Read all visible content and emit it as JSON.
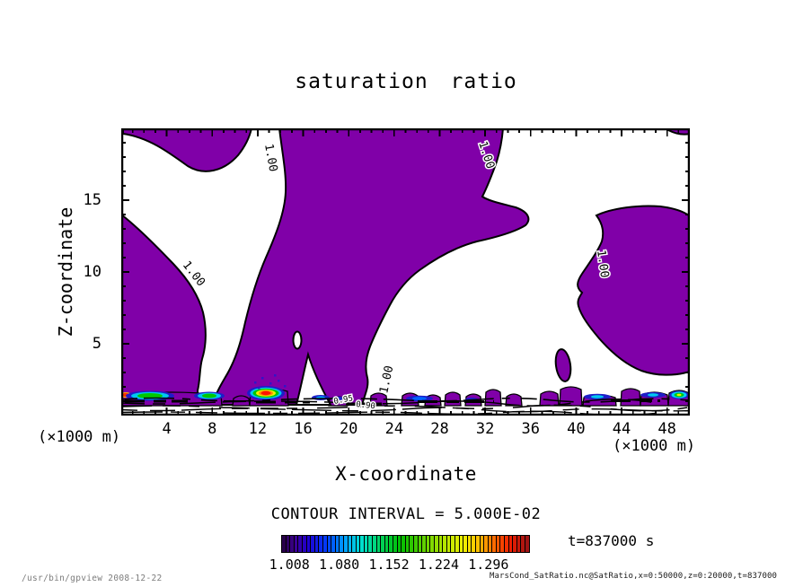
{
  "title": "saturation ratio",
  "axes": {
    "x": {
      "label": "X-coordinate",
      "unit": "(×1000 m)",
      "min": 0,
      "max": 50,
      "ticks": [
        4,
        8,
        12,
        16,
        20,
        24,
        28,
        32,
        36,
        40,
        44,
        48
      ]
    },
    "z": {
      "label": "Z-coordinate",
      "unit": "(×1000 m)",
      "min": 0,
      "max": 20,
      "ticks": [
        5,
        10,
        15
      ]
    }
  },
  "contour": {
    "interval_text": "CONTOUR INTERVAL = 5.000E-02",
    "main_label": "1.00",
    "minor_label_a": "0.95",
    "minor_label_b": "0.90"
  },
  "colorbar": {
    "min": 0.996,
    "max": 1.356,
    "cells": 60,
    "tick_labels": [
      "1.008",
      "1.080",
      "1.152",
      "1.224",
      "1.296"
    ],
    "tick_values": [
      1.008,
      1.08,
      1.152,
      1.224,
      1.296
    ],
    "stops": [
      [
        0.0,
        "#28004a"
      ],
      [
        0.05,
        "#3c0096"
      ],
      [
        0.1,
        "#1e00d2"
      ],
      [
        0.18,
        "#0040ff"
      ],
      [
        0.25,
        "#00a0ff"
      ],
      [
        0.32,
        "#00e0d0"
      ],
      [
        0.4,
        "#00d25a"
      ],
      [
        0.48,
        "#00be00"
      ],
      [
        0.58,
        "#64d200"
      ],
      [
        0.66,
        "#b4e600"
      ],
      [
        0.74,
        "#f0f000"
      ],
      [
        0.8,
        "#ffbe00"
      ],
      [
        0.87,
        "#ff6400"
      ],
      [
        0.93,
        "#f01e00"
      ],
      [
        1.0,
        "#a01414"
      ]
    ]
  },
  "time_label": "t=837000 s",
  "footer": {
    "left": "/usr/bin/gpview  2008-12-22",
    "right": "MarsCond_SatRatio.nc@SatRatio,x=0:50000,z=0:20000,t=837000"
  },
  "fill_color": "#8000a8",
  "chart_data": {
    "type": "contour",
    "title": "saturation ratio",
    "xlabel": "X-coordinate (×1000 m)",
    "ylabel": "Z-coordinate (×1000 m)",
    "xlim": [
      0,
      50
    ],
    "ylim": [
      0,
      20
    ],
    "x_ticks": [
      4,
      8,
      12,
      16,
      20,
      24,
      28,
      32,
      36,
      40,
      44,
      48
    ],
    "y_ticks": [
      5,
      10,
      15
    ],
    "contour_interval": 0.05,
    "labeled_contour_level": 1.0,
    "fill_threshold": 1.0,
    "fill_color": "#8000a8",
    "time_seconds": 837000,
    "colorbar_range": [
      0.996,
      1.356
    ],
    "colorbar_cell_width": 0.006,
    "colorbar_tick_values": [
      1.008,
      1.08,
      1.152,
      1.224,
      1.296
    ],
    "saturated_regions": [
      {
        "desc": "top-left lobe along upper boundary",
        "x_km": [
          0.2,
          11.5
        ],
        "z_km": [
          16.8,
          20
        ]
      },
      {
        "desc": "left wedge along left boundary",
        "x_km": [
          0,
          7.5
        ],
        "z_km": [
          0.3,
          14
        ]
      },
      {
        "desc": "central plume from surface to top",
        "x_km": [
          8,
          36
        ],
        "z_km": [
          0.8,
          20
        ]
      },
      {
        "desc": "right lobe touching right boundary",
        "x_km": [
          40,
          50
        ],
        "z_km": [
          2.8,
          14.5
        ]
      },
      {
        "desc": "small detached blob",
        "x_km": [
          38.2,
          39.8
        ],
        "z_km": [
          2.2,
          4.5
        ]
      },
      {
        "desc": "patchy near-surface saturated layer with supersaturation maxima up to ~1.33",
        "x_km": [
          0,
          50
        ],
        "z_km": [
          0,
          2
        ]
      }
    ]
  }
}
